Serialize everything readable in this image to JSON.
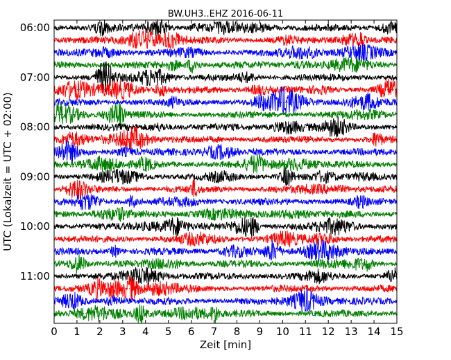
{
  "chart_data": {
    "type": "line",
    "title": "BW.UH3..EHZ 2016-06-11",
    "xlabel": "Zeit  [min]",
    "ylabel": "UTC (Lokalzeit = UTC + 02:00)",
    "xlim": [
      0,
      15
    ],
    "x_ticks": [
      "0",
      "1",
      "2",
      "3",
      "4",
      "5",
      "6",
      "7",
      "8",
      "9",
      "10",
      "11",
      "12",
      "13",
      "14",
      "15"
    ],
    "y_ticks": [
      "06:00",
      "07:00",
      "08:00",
      "09:00",
      "10:00",
      "11:00"
    ],
    "trace_interval_min": 15,
    "trace_colors": [
      "#000000",
      "#ff0000",
      "#0000ff",
      "#008000"
    ],
    "grid": "dotted horizontal trace baselines",
    "traces": [
      {
        "start": "06:00",
        "color": "#000000"
      },
      {
        "start": "06:15",
        "color": "#ff0000"
      },
      {
        "start": "06:30",
        "color": "#0000ff"
      },
      {
        "start": "06:45",
        "color": "#008000"
      },
      {
        "start": "07:00",
        "color": "#000000"
      },
      {
        "start": "07:15",
        "color": "#ff0000"
      },
      {
        "start": "07:30",
        "color": "#0000ff"
      },
      {
        "start": "07:45",
        "color": "#008000"
      },
      {
        "start": "08:00",
        "color": "#000000"
      },
      {
        "start": "08:15",
        "color": "#ff0000"
      },
      {
        "start": "08:30",
        "color": "#0000ff"
      },
      {
        "start": "08:45",
        "color": "#008000"
      },
      {
        "start": "09:00",
        "color": "#000000"
      },
      {
        "start": "09:15",
        "color": "#ff0000"
      },
      {
        "start": "09:30",
        "color": "#0000ff"
      },
      {
        "start": "09:45",
        "color": "#008000"
      },
      {
        "start": "10:00",
        "color": "#000000"
      },
      {
        "start": "10:15",
        "color": "#ff0000"
      },
      {
        "start": "10:30",
        "color": "#0000ff"
      },
      {
        "start": "10:45",
        "color": "#008000"
      },
      {
        "start": "11:00",
        "color": "#000000"
      },
      {
        "start": "11:15",
        "color": "#ff0000"
      },
      {
        "start": "11:30",
        "color": "#0000ff"
      },
      {
        "start": "11:45",
        "color": "#008000"
      }
    ]
  }
}
